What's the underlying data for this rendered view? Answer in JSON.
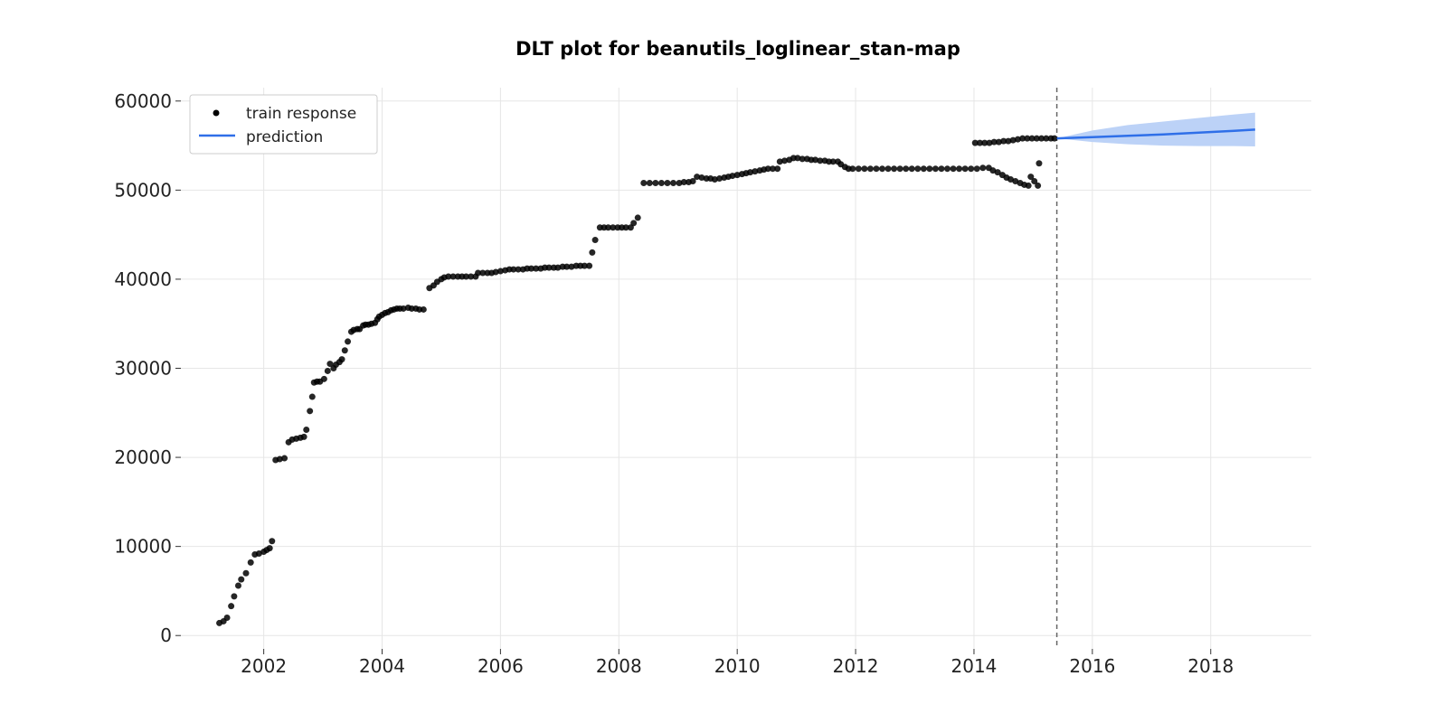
{
  "chart_data": {
    "type": "scatter",
    "title": "DLT plot for beanutils_loglinear_stan-map",
    "xlabel": "",
    "ylabel": "",
    "xlim": [
      2000.6,
      2019.7
    ],
    "ylim": [
      -1500,
      61500
    ],
    "x_ticks": [
      2002,
      2004,
      2006,
      2008,
      2010,
      2012,
      2014,
      2016,
      2018
    ],
    "y_ticks": [
      0,
      10000,
      20000,
      30000,
      40000,
      50000,
      60000
    ],
    "grid": true,
    "legend_position": "top-left",
    "split_x": 2015.4,
    "colors": {
      "train": "#000000",
      "prediction": "#2f6fe8",
      "band": "#bcd2f7",
      "split": "#666666"
    },
    "series": [
      {
        "name": "train response",
        "kind": "points",
        "points": [
          [
            2001.25,
            1400
          ],
          [
            2001.32,
            1600
          ],
          [
            2001.38,
            2000
          ],
          [
            2001.45,
            3300
          ],
          [
            2001.5,
            4400
          ],
          [
            2001.57,
            5600
          ],
          [
            2001.62,
            6300
          ],
          [
            2001.7,
            7000
          ],
          [
            2001.78,
            8200
          ],
          [
            2001.85,
            9100
          ],
          [
            2001.92,
            9200
          ],
          [
            2002.0,
            9400
          ],
          [
            2002.05,
            9600
          ],
          [
            2002.1,
            9800
          ],
          [
            2002.14,
            10600
          ],
          [
            2002.2,
            19700
          ],
          [
            2002.27,
            19800
          ],
          [
            2002.35,
            19900
          ],
          [
            2002.42,
            21700
          ],
          [
            2002.48,
            22000
          ],
          [
            2002.55,
            22100
          ],
          [
            2002.62,
            22200
          ],
          [
            2002.68,
            22300
          ],
          [
            2002.72,
            23100
          ],
          [
            2002.78,
            25200
          ],
          [
            2002.82,
            26800
          ],
          [
            2002.85,
            28400
          ],
          [
            2002.9,
            28500
          ],
          [
            2002.95,
            28500
          ],
          [
            2003.02,
            28800
          ],
          [
            2003.08,
            29700
          ],
          [
            2003.12,
            30500
          ],
          [
            2003.18,
            30000
          ],
          [
            2003.22,
            30400
          ],
          [
            2003.28,
            30700
          ],
          [
            2003.32,
            31000
          ],
          [
            2003.37,
            32000
          ],
          [
            2003.42,
            33000
          ],
          [
            2003.48,
            34100
          ],
          [
            2003.52,
            34300
          ],
          [
            2003.58,
            34400
          ],
          [
            2003.62,
            34400
          ],
          [
            2003.68,
            34800
          ],
          [
            2003.72,
            34900
          ],
          [
            2003.77,
            34900
          ],
          [
            2003.82,
            35000
          ],
          [
            2003.88,
            35100
          ],
          [
            2003.92,
            35500
          ],
          [
            2003.95,
            35800
          ],
          [
            2004.0,
            36000
          ],
          [
            2004.05,
            36200
          ],
          [
            2004.1,
            36300
          ],
          [
            2004.15,
            36500
          ],
          [
            2004.2,
            36600
          ],
          [
            2004.25,
            36700
          ],
          [
            2004.3,
            36700
          ],
          [
            2004.36,
            36700
          ],
          [
            2004.44,
            36800
          ],
          [
            2004.5,
            36700
          ],
          [
            2004.57,
            36700
          ],
          [
            2004.63,
            36600
          ],
          [
            2004.7,
            36600
          ],
          [
            2004.8,
            39000
          ],
          [
            2004.87,
            39300
          ],
          [
            2004.93,
            39700
          ],
          [
            2005.0,
            40000
          ],
          [
            2005.05,
            40200
          ],
          [
            2005.12,
            40300
          ],
          [
            2005.2,
            40300
          ],
          [
            2005.28,
            40300
          ],
          [
            2005.35,
            40300
          ],
          [
            2005.42,
            40300
          ],
          [
            2005.5,
            40300
          ],
          [
            2005.58,
            40300
          ],
          [
            2005.62,
            40700
          ],
          [
            2005.7,
            40700
          ],
          [
            2005.78,
            40700
          ],
          [
            2005.85,
            40700
          ],
          [
            2005.92,
            40800
          ],
          [
            2006.0,
            40900
          ],
          [
            2006.08,
            41000
          ],
          [
            2006.15,
            41100
          ],
          [
            2006.22,
            41100
          ],
          [
            2006.3,
            41100
          ],
          [
            2006.38,
            41100
          ],
          [
            2006.45,
            41200
          ],
          [
            2006.52,
            41200
          ],
          [
            2006.6,
            41200
          ],
          [
            2006.68,
            41200
          ],
          [
            2006.75,
            41300
          ],
          [
            2006.82,
            41300
          ],
          [
            2006.9,
            41300
          ],
          [
            2006.97,
            41300
          ],
          [
            2007.05,
            41400
          ],
          [
            2007.12,
            41400
          ],
          [
            2007.2,
            41400
          ],
          [
            2007.28,
            41500
          ],
          [
            2007.35,
            41500
          ],
          [
            2007.42,
            41500
          ],
          [
            2007.5,
            41500
          ],
          [
            2007.55,
            43000
          ],
          [
            2007.6,
            44400
          ],
          [
            2007.68,
            45800
          ],
          [
            2007.75,
            45800
          ],
          [
            2007.82,
            45800
          ],
          [
            2007.9,
            45800
          ],
          [
            2007.98,
            45800
          ],
          [
            2008.05,
            45800
          ],
          [
            2008.12,
            45800
          ],
          [
            2008.2,
            45800
          ],
          [
            2008.25,
            46300
          ],
          [
            2008.32,
            46900
          ],
          [
            2008.42,
            50800
          ],
          [
            2008.52,
            50800
          ],
          [
            2008.62,
            50800
          ],
          [
            2008.72,
            50800
          ],
          [
            2008.82,
            50800
          ],
          [
            2008.92,
            50800
          ],
          [
            2009.02,
            50800
          ],
          [
            2009.1,
            50900
          ],
          [
            2009.18,
            50900
          ],
          [
            2009.25,
            51000
          ],
          [
            2009.32,
            51500
          ],
          [
            2009.4,
            51400
          ],
          [
            2009.48,
            51300
          ],
          [
            2009.55,
            51300
          ],
          [
            2009.62,
            51200
          ],
          [
            2009.7,
            51300
          ],
          [
            2009.78,
            51400
          ],
          [
            2009.85,
            51500
          ],
          [
            2009.92,
            51600
          ],
          [
            2010.0,
            51700
          ],
          [
            2010.08,
            51800
          ],
          [
            2010.15,
            51900
          ],
          [
            2010.22,
            52000
          ],
          [
            2010.3,
            52100
          ],
          [
            2010.38,
            52200
          ],
          [
            2010.45,
            52300
          ],
          [
            2010.52,
            52400
          ],
          [
            2010.6,
            52400
          ],
          [
            2010.68,
            52400
          ],
          [
            2010.72,
            53200
          ],
          [
            2010.8,
            53300
          ],
          [
            2010.88,
            53400
          ],
          [
            2010.95,
            53600
          ],
          [
            2011.02,
            53600
          ],
          [
            2011.1,
            53500
          ],
          [
            2011.18,
            53500
          ],
          [
            2011.25,
            53400
          ],
          [
            2011.32,
            53400
          ],
          [
            2011.4,
            53300
          ],
          [
            2011.48,
            53300
          ],
          [
            2011.55,
            53200
          ],
          [
            2011.62,
            53200
          ],
          [
            2011.7,
            53200
          ],
          [
            2011.75,
            52900
          ],
          [
            2011.82,
            52600
          ],
          [
            2011.88,
            52400
          ],
          [
            2011.95,
            52400
          ],
          [
            2012.05,
            52400
          ],
          [
            2012.15,
            52400
          ],
          [
            2012.25,
            52400
          ],
          [
            2012.35,
            52400
          ],
          [
            2012.45,
            52400
          ],
          [
            2012.55,
            52400
          ],
          [
            2012.65,
            52400
          ],
          [
            2012.75,
            52400
          ],
          [
            2012.85,
            52400
          ],
          [
            2012.95,
            52400
          ],
          [
            2013.05,
            52400
          ],
          [
            2013.15,
            52400
          ],
          [
            2013.25,
            52400
          ],
          [
            2013.35,
            52400
          ],
          [
            2013.45,
            52400
          ],
          [
            2013.55,
            52400
          ],
          [
            2013.65,
            52400
          ],
          [
            2013.75,
            52400
          ],
          [
            2013.85,
            52400
          ],
          [
            2013.95,
            52400
          ],
          [
            2014.05,
            52400
          ],
          [
            2014.15,
            52500
          ],
          [
            2014.25,
            52500
          ],
          [
            2014.32,
            52200
          ],
          [
            2014.4,
            52000
          ],
          [
            2014.48,
            51700
          ],
          [
            2014.55,
            51400
          ],
          [
            2014.62,
            51200
          ],
          [
            2014.7,
            51000
          ],
          [
            2014.78,
            50800
          ],
          [
            2014.85,
            50600
          ],
          [
            2014.92,
            50500
          ],
          [
            2014.96,
            51500
          ],
          [
            2015.02,
            51000
          ],
          [
            2015.08,
            50500
          ],
          [
            2015.1,
            53000
          ],
          [
            2014.02,
            55300
          ],
          [
            2014.1,
            55300
          ],
          [
            2014.18,
            55300
          ],
          [
            2014.26,
            55300
          ],
          [
            2014.34,
            55400
          ],
          [
            2014.42,
            55400
          ],
          [
            2014.5,
            55500
          ],
          [
            2014.58,
            55500
          ],
          [
            2014.66,
            55600
          ],
          [
            2014.74,
            55700
          ],
          [
            2014.82,
            55800
          ],
          [
            2014.9,
            55800
          ],
          [
            2014.98,
            55800
          ],
          [
            2015.06,
            55800
          ],
          [
            2015.14,
            55800
          ],
          [
            2015.22,
            55800
          ],
          [
            2015.3,
            55800
          ],
          [
            2015.36,
            55800
          ]
        ]
      },
      {
        "name": "prediction",
        "kind": "line",
        "x": [
          2015.4,
          2016.0,
          2016.6,
          2017.2,
          2017.8,
          2018.4,
          2018.75
        ],
        "y": [
          55800,
          55950,
          56100,
          56250,
          56450,
          56650,
          56800
        ],
        "lower": [
          55800,
          55400,
          55150,
          55000,
          54950,
          54950,
          54900
        ],
        "upper": [
          55800,
          56700,
          57300,
          57700,
          58100,
          58500,
          58700
        ]
      }
    ]
  }
}
